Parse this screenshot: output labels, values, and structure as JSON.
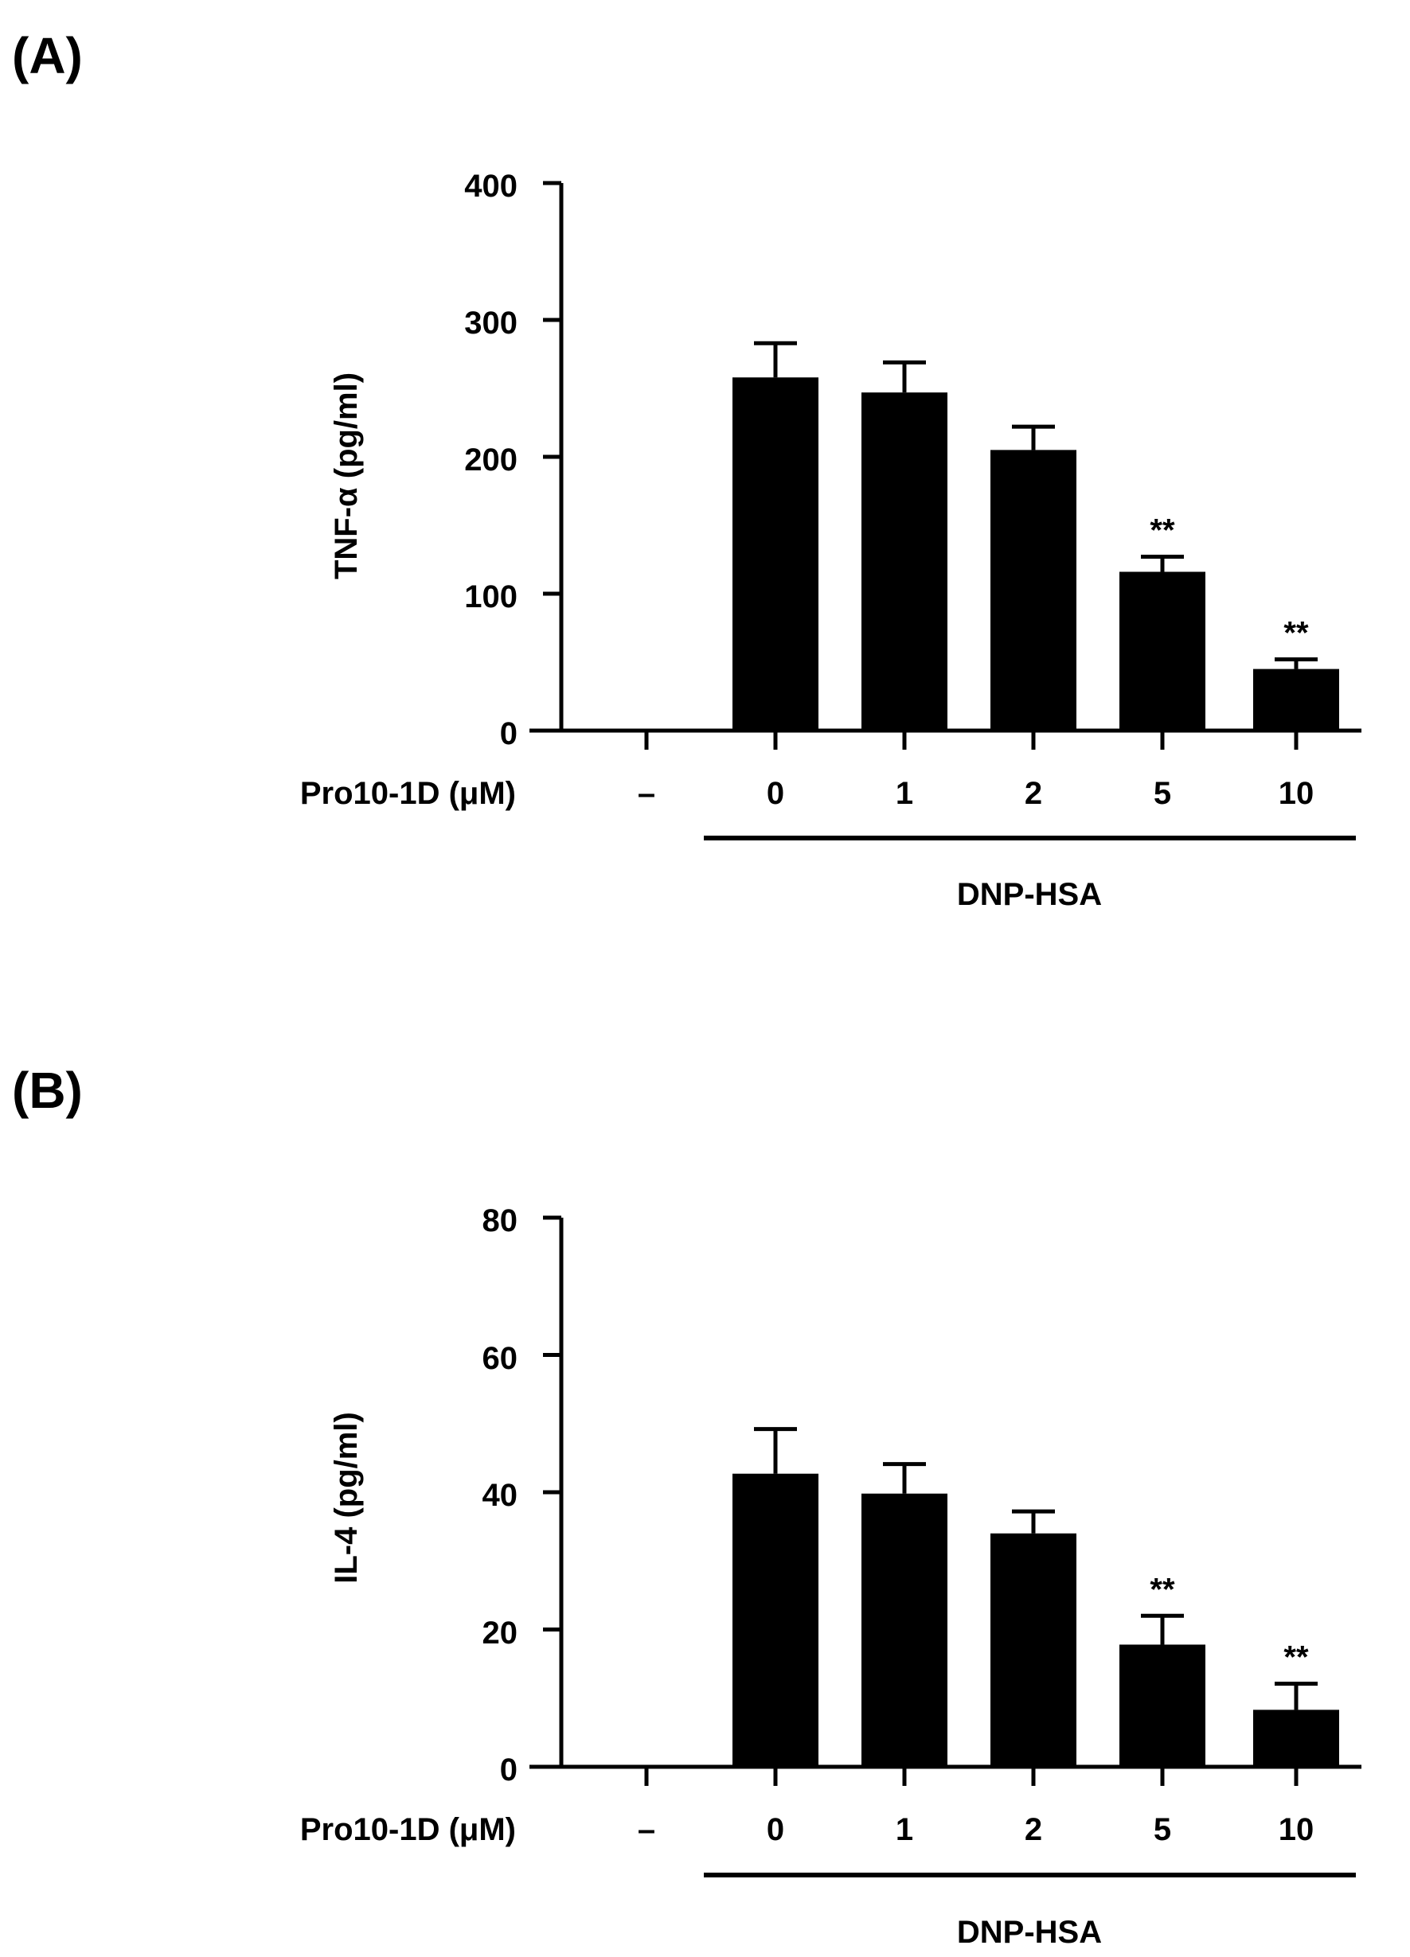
{
  "chart_data": [
    {
      "panel_label": "(A)",
      "type": "bar",
      "ylabel": "TNF-α (pg/ml)",
      "xlabel": "Pro10-1D (μM)",
      "categories": [
        "–",
        "0",
        "1",
        "2",
        "5",
        "10"
      ],
      "values": [
        0,
        258,
        247,
        205,
        116,
        45
      ],
      "errors": [
        0,
        25,
        22,
        17,
        11,
        7
      ],
      "significance": [
        "",
        "",
        "",
        "",
        "**",
        "**"
      ],
      "yticks": [
        "0",
        "100",
        "200",
        "300",
        "400"
      ],
      "ylim": [
        0,
        400
      ],
      "treatment_label": "DNP-HSA",
      "bar_color": "#000000"
    },
    {
      "panel_label": "(B)",
      "type": "bar",
      "ylabel": "IL-4 (pg/ml)",
      "xlabel": "Pro10-1D (μM)",
      "categories": [
        "–",
        "0",
        "1",
        "2",
        "5",
        "10"
      ],
      "values": [
        0,
        42.7,
        39.8,
        34,
        17.8,
        8.3
      ],
      "errors": [
        0,
        6.5,
        4.3,
        3.2,
        4.2,
        3.8
      ],
      "significance": [
        "",
        "",
        "",
        "",
        "**",
        "**"
      ],
      "yticks": [
        "0",
        "20",
        "40",
        "60",
        "80"
      ],
      "ylim": [
        0,
        80
      ],
      "treatment_label": "DNP-HSA",
      "bar_color": "#000000"
    }
  ]
}
